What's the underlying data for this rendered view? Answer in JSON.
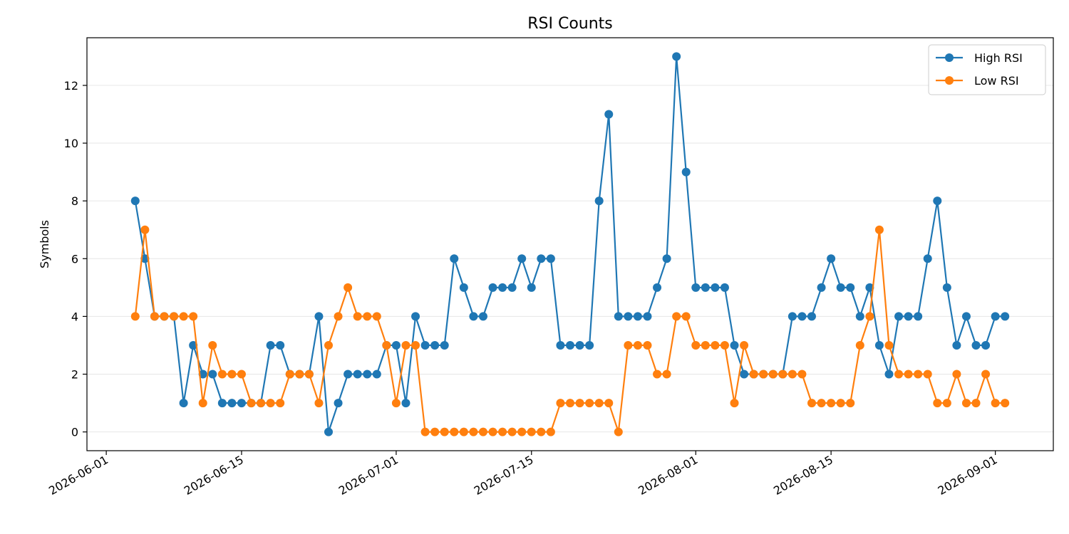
{
  "chart_data": {
    "type": "line",
    "title": "RSI Counts",
    "xlabel": "",
    "ylabel": "Symbols",
    "x_type": "date",
    "xlim": [
      "2026-05-30",
      "2026-09-07"
    ],
    "ylim": [
      -0.65,
      13.65
    ],
    "x_ticks": [
      "2026-06-01",
      "2026-06-15",
      "2026-07-01",
      "2026-07-15",
      "2026-08-01",
      "2026-08-15",
      "2026-09-01"
    ],
    "y_ticks": [
      0,
      2,
      4,
      6,
      8,
      10,
      12
    ],
    "grid": "horizontal",
    "legend_position": "top-right",
    "x": [
      "2026-06-04",
      "2026-06-05",
      "2026-06-06",
      "2026-06-07",
      "2026-06-08",
      "2026-06-09",
      "2026-06-10",
      "2026-06-11",
      "2026-06-12",
      "2026-06-13",
      "2026-06-14",
      "2026-06-15",
      "2026-06-16",
      "2026-06-17",
      "2026-06-18",
      "2026-06-19",
      "2026-06-20",
      "2026-06-21",
      "2026-06-22",
      "2026-06-23",
      "2026-06-24",
      "2026-06-25",
      "2026-06-26",
      "2026-06-27",
      "2026-06-28",
      "2026-06-29",
      "2026-06-30",
      "2026-07-01",
      "2026-07-02",
      "2026-07-03",
      "2026-07-04",
      "2026-07-05",
      "2026-07-06",
      "2026-07-07",
      "2026-07-08",
      "2026-07-09",
      "2026-07-10",
      "2026-07-11",
      "2026-07-12",
      "2026-07-13",
      "2026-07-14",
      "2026-07-15",
      "2026-07-16",
      "2026-07-17",
      "2026-07-18",
      "2026-07-19",
      "2026-07-20",
      "2026-07-21",
      "2026-07-22",
      "2026-07-23",
      "2026-07-24",
      "2026-07-25",
      "2026-07-26",
      "2026-07-27",
      "2026-07-28",
      "2026-07-29",
      "2026-07-30",
      "2026-07-31",
      "2026-08-01",
      "2026-08-02",
      "2026-08-03",
      "2026-08-04",
      "2026-08-05",
      "2026-08-06",
      "2026-08-07",
      "2026-08-08",
      "2026-08-09",
      "2026-08-10",
      "2026-08-11",
      "2026-08-12",
      "2026-08-13",
      "2026-08-14",
      "2026-08-15",
      "2026-08-16",
      "2026-08-17",
      "2026-08-18",
      "2026-08-19",
      "2026-08-20",
      "2026-08-21",
      "2026-08-22",
      "2026-08-23",
      "2026-08-24",
      "2026-08-25",
      "2026-08-26",
      "2026-08-27",
      "2026-08-28",
      "2026-08-29",
      "2026-08-30",
      "2026-08-31",
      "2026-09-01",
      "2026-09-02"
    ],
    "series": [
      {
        "name": "High RSI",
        "color": "#1f77b4",
        "values": [
          8,
          6,
          4,
          4,
          4,
          1,
          3,
          2,
          2,
          1,
          1,
          1,
          1,
          1,
          3,
          3,
          2,
          2,
          2,
          4,
          0,
          1,
          2,
          2,
          2,
          2,
          3,
          3,
          1,
          4,
          3,
          3,
          3,
          6,
          5,
          4,
          4,
          5,
          5,
          5,
          6,
          5,
          6,
          6,
          3,
          3,
          3,
          3,
          8,
          11,
          4,
          4,
          4,
          4,
          5,
          6,
          13,
          9,
          5,
          5,
          5,
          5,
          3,
          2,
          2,
          2,
          2,
          2,
          4,
          4,
          4,
          5,
          6,
          5,
          5,
          4,
          5,
          3,
          2,
          4,
          4,
          4,
          6,
          8,
          5,
          3,
          4,
          3,
          3,
          4,
          4
        ]
      },
      {
        "name": "Low RSI",
        "color": "#ff7f0e",
        "values": [
          4,
          7,
          4,
          4,
          4,
          4,
          4,
          1,
          3,
          2,
          2,
          2,
          1,
          1,
          1,
          1,
          2,
          2,
          2,
          1,
          3,
          4,
          5,
          4,
          4,
          4,
          3,
          1,
          3,
          3,
          0,
          0,
          0,
          0,
          0,
          0,
          0,
          0,
          0,
          0,
          0,
          0,
          0,
          0,
          1,
          1,
          1,
          1,
          1,
          1,
          0,
          3,
          3,
          3,
          2,
          2,
          4,
          4,
          3,
          3,
          3,
          3,
          1,
          3,
          2,
          2,
          2,
          2,
          2,
          2,
          1,
          1,
          1,
          1,
          1,
          3,
          4,
          7,
          3,
          2,
          2,
          2,
          2,
          1,
          1,
          2,
          1,
          1,
          2,
          1,
          1
        ]
      }
    ]
  }
}
